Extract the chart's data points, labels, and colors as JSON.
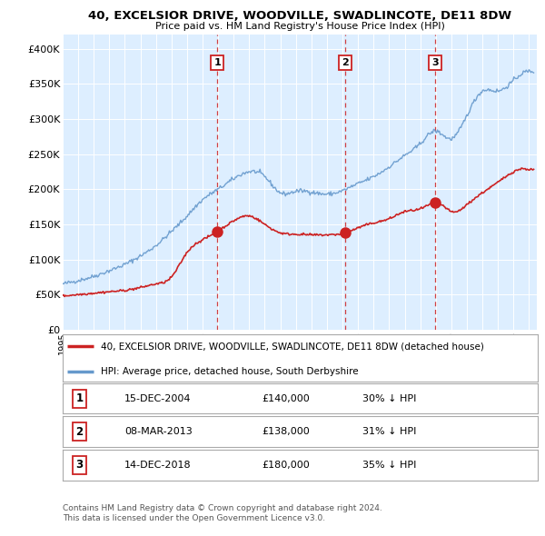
{
  "title": "40, EXCELSIOR DRIVE, WOODVILLE, SWADLINCOTE, DE11 8DW",
  "subtitle": "Price paid vs. HM Land Registry's House Price Index (HPI)",
  "bg_color": "#ddeeff",
  "hpi_color": "#6699cc",
  "price_color": "#cc2222",
  "vline_color": "#cc2222",
  "ylim": [
    0,
    420000
  ],
  "yticks": [
    0,
    50000,
    100000,
    150000,
    200000,
    250000,
    300000,
    350000,
    400000
  ],
  "ytick_labels": [
    "£0",
    "£50K",
    "£100K",
    "£150K",
    "£200K",
    "£250K",
    "£300K",
    "£350K",
    "£400K"
  ],
  "transactions": [
    {
      "num": 1,
      "date": "15-DEC-2004",
      "price": 140000,
      "pct": "30%",
      "x": 2004.96
    },
    {
      "num": 2,
      "date": "08-MAR-2013",
      "price": 138000,
      "pct": "31%",
      "x": 2013.18
    },
    {
      "num": 3,
      "date": "14-DEC-2018",
      "price": 180000,
      "pct": "35%",
      "x": 2018.96
    }
  ],
  "legend_entries": [
    "40, EXCELSIOR DRIVE, WOODVILLE, SWADLINCOTE, DE11 8DW (detached house)",
    "HPI: Average price, detached house, South Derbyshire"
  ],
  "footer_line1": "Contains HM Land Registry data © Crown copyright and database right 2024.",
  "footer_line2": "This data is licensed under the Open Government Licence v3.0.",
  "xmin": 1995.0,
  "xmax": 2025.5
}
